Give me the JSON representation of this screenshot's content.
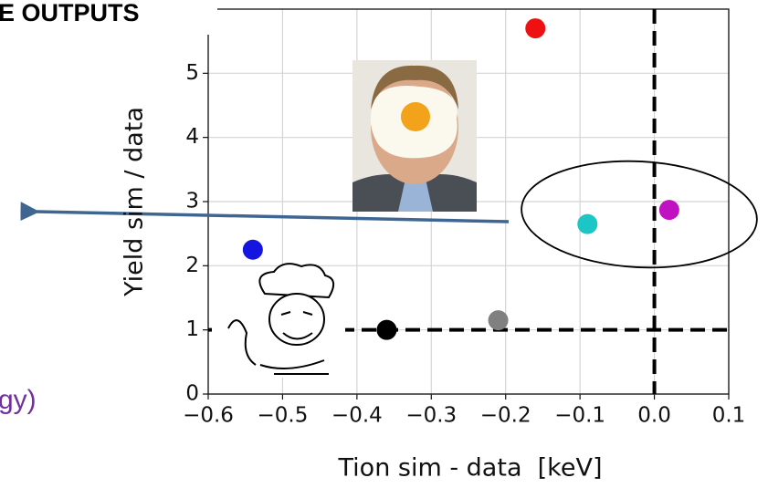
{
  "chart_data": {
    "type": "scatter",
    "annotations": [
      "E OUTPUTS",
      "gy)"
    ],
    "xlabel": "Tion sim - data  [keV]",
    "ylabel": "Yield sim / data",
    "x": [
      -0.16,
      -0.54,
      -0.36,
      -0.21,
      -0.09,
      0.02
    ],
    "values": [
      5.7,
      2.25,
      1.0,
      1.15,
      2.65,
      2.87
    ],
    "colors": [
      "#ee1111",
      "#1515e0",
      "#000000",
      "#808080",
      "#1bc6c6",
      "#c012c0"
    ],
    "xlim": [
      -0.6,
      0.1
    ],
    "ylim": [
      0,
      6
    ],
    "xticks": [
      {
        "value": -0.6,
        "label": "−0.6"
      },
      {
        "value": -0.5,
        "label": "−0.5"
      },
      {
        "value": -0.4,
        "label": "−0.4"
      },
      {
        "value": -0.3,
        "label": "−0.3"
      },
      {
        "value": -0.2,
        "label": "−0.2"
      },
      {
        "value": -0.1,
        "label": "−0.1"
      },
      {
        "value": 0,
        "label": "0.0"
      },
      0.1
    ],
    "yticks": [
      0,
      1,
      2,
      3,
      4,
      5
    ],
    "reference_x": 0,
    "reference_y": 1,
    "grid": true
  }
}
